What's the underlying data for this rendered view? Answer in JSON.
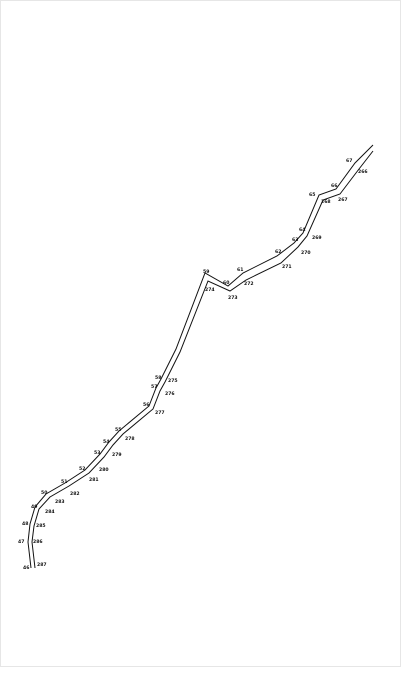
{
  "diagram": {
    "line_color": "#111111",
    "background": "#ffffff",
    "left_labels": [
      "46",
      "47",
      "48",
      "49",
      "50",
      "51",
      "52",
      "53",
      "54",
      "55",
      "56",
      "57",
      "58",
      "59",
      "60",
      "61",
      "62",
      "63",
      "64",
      "65",
      "66",
      "67"
    ],
    "right_labels": [
      "287",
      "286",
      "285",
      "284",
      "283",
      "282",
      "281",
      "280",
      "279",
      "278",
      "277",
      "276",
      "275",
      "274",
      "273",
      "272",
      "271",
      "270",
      "269",
      "268",
      "267",
      "266"
    ]
  }
}
